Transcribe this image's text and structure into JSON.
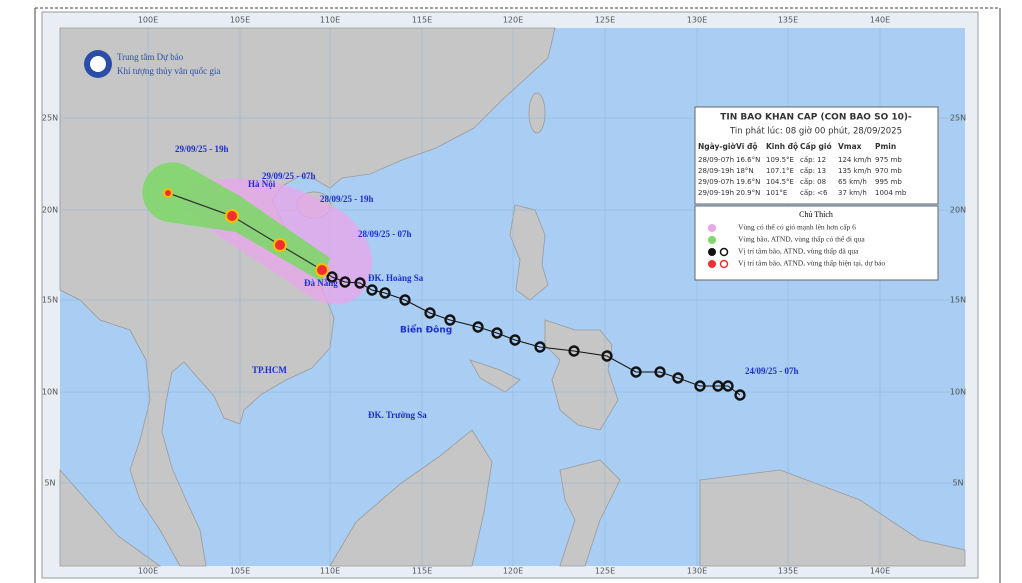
{
  "agency": {
    "line1": "Trung tâm Dự báo",
    "line2": "Khí tượng thủy văn quốc gia"
  },
  "lon_labels": [
    "100E",
    "105E",
    "110E",
    "115E",
    "120E",
    "125E",
    "130E",
    "135E",
    "140E"
  ],
  "lat_labels": [
    "25N",
    "20N",
    "15N",
    "10N",
    "5N"
  ],
  "bulletin": {
    "title": "TIN BAO KHAN CAP (CON BAO SO 10)-",
    "issued": "Tin phát lúc: 08 giờ 00 phút, 28/09/2025",
    "header": [
      "Ngày-giờ",
      "Vĩ độ",
      "Kinh độ",
      "Cấp gió",
      "Vmax",
      "Pmin"
    ],
    "rows": [
      [
        "28/09-07h",
        "16.6°N",
        "109.5°E",
        "cấp: 12",
        "124 km/h",
        "975 mb"
      ],
      [
        "28/09-19h",
        "18°N",
        "107.1°E",
        "cấp: 13",
        "135 km/h",
        "970 mb"
      ],
      [
        "29/09-07h",
        "19.6°N",
        "104.5°E",
        "cấp: 08",
        "65 km/h",
        "995 mb"
      ],
      [
        "29/09-19h",
        "20.9°N",
        "101°E",
        "cấp: <6",
        "37 km/h",
        "1004 mb"
      ]
    ]
  },
  "legend": {
    "title": "Chú Thích",
    "items": [
      "Vùng có thể có gió mạnh lên hơn cấp 6",
      "Vùng bão, ATND, vùng thấp có thể đi qua",
      "Vị trí tâm bão, ATND, vùng thấp đã qua",
      "Vị trí tâm bão, ATND, vùng thấp hiện tại, dự báo"
    ]
  },
  "time_labels": [
    "29/09/25 - 19h",
    "29/09/25 - 07h",
    "28/09/25 - 19h",
    "28/09/25 - 07h",
    "24/09/25 - 07h"
  ],
  "places": [
    "Hà Nội",
    "Đà Nẵng",
    "ĐK. Hoàng Sa",
    "Biển Đông",
    "TP.HCM",
    "ĐK. Trường Sa"
  ]
}
